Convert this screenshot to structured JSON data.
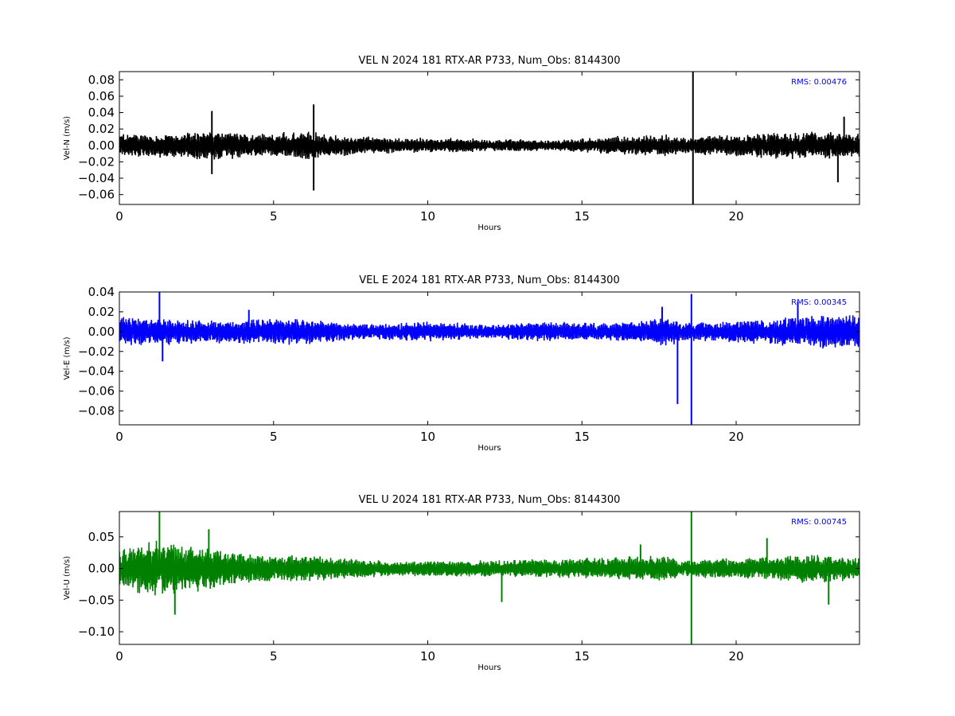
{
  "chart_data": [
    {
      "type": "line",
      "title": "VEL N 2024 181 RTX-AR  P733, Num_Obs: 8144300",
      "xlabel": "Hours",
      "ylabel": "Vel-N (m/s)",
      "xlim": [
        0,
        24
      ],
      "ylim": [
        -0.072,
        0.09
      ],
      "xticks": [
        "0",
        "5",
        "10",
        "15",
        "20"
      ],
      "yticks": [
        "−0.06",
        "−0.04",
        "−0.02",
        "0.00",
        "0.02",
        "0.04",
        "0.06",
        "0.08"
      ],
      "ytick_values": [
        -0.06,
        -0.04,
        -0.02,
        0.0,
        0.02,
        0.04,
        0.06,
        0.08
      ],
      "annotation": "RMS:  0.00476",
      "annotation_color": "#0000ff",
      "color": "#000000",
      "grid": false,
      "series": [
        {
          "noise_envelope": {
            "x": [
              0,
              1,
              2,
              3,
              4,
              5,
              6,
              7,
              8,
              9,
              10,
              11,
              12,
              13,
              14,
              15,
              16,
              17,
              18,
              18.1,
              19,
              20,
              21,
              22,
              23,
              24
            ],
            "y": [
              0.013,
              0.013,
              0.014,
              0.016,
              0.014,
              0.013,
              0.017,
              0.012,
              0.01,
              0.009,
              0.008,
              0.008,
              0.007,
              0.007,
              0.006,
              0.008,
              0.01,
              0.012,
              0.012,
              0.008,
              0.011,
              0.012,
              0.014,
              0.015,
              0.015,
              0.015
            ]
          },
          "spikes": [
            {
              "x": 3.0,
              "y": 0.042
            },
            {
              "x": 3.0,
              "y": -0.035
            },
            {
              "x": 6.3,
              "y": 0.05
            },
            {
              "x": 6.3,
              "y": -0.055
            },
            {
              "x": 18.6,
              "y": 0.09
            },
            {
              "x": 18.6,
              "y": -0.072
            },
            {
              "x": 23.3,
              "y": -0.045
            },
            {
              "x": 23.5,
              "y": 0.035
            }
          ]
        }
      ]
    },
    {
      "type": "line",
      "title": "VEL E 2024 181 RTX-AR  P733, Num_Obs: 8144300",
      "xlabel": "Hours",
      "ylabel": "Vel-E (m/s)",
      "xlim": [
        0,
        24
      ],
      "ylim": [
        -0.094,
        0.04
      ],
      "xticks": [
        "0",
        "5",
        "10",
        "15",
        "20"
      ],
      "yticks": [
        "−0.08",
        "−0.06",
        "−0.04",
        "−0.02",
        "0.00",
        "0.02",
        "0.04"
      ],
      "ytick_values": [
        -0.08,
        -0.06,
        -0.04,
        -0.02,
        0.0,
        0.02,
        0.04
      ],
      "annotation": "RMS:  0.00345",
      "annotation_color": "#0000ff",
      "color": "#0000ff",
      "grid": false,
      "series": [
        {
          "noise_envelope": {
            "x": [
              0,
              1,
              2,
              3,
              4,
              5,
              6,
              7,
              8,
              9,
              10,
              11,
              12,
              13,
              14,
              15,
              16,
              17,
              18,
              18.1,
              19,
              20,
              21,
              22,
              23,
              24
            ],
            "y": [
              0.013,
              0.013,
              0.012,
              0.011,
              0.011,
              0.012,
              0.012,
              0.009,
              0.007,
              0.008,
              0.009,
              0.008,
              0.006,
              0.008,
              0.009,
              0.008,
              0.008,
              0.01,
              0.014,
              0.008,
              0.009,
              0.01,
              0.011,
              0.014,
              0.015,
              0.015
            ]
          },
          "spikes": [
            {
              "x": 1.3,
              "y": 0.04
            },
            {
              "x": 1.4,
              "y": -0.03
            },
            {
              "x": 4.2,
              "y": 0.022
            },
            {
              "x": 17.6,
              "y": 0.025
            },
            {
              "x": 18.1,
              "y": -0.073
            },
            {
              "x": 18.55,
              "y": 0.038
            },
            {
              "x": 18.55,
              "y": -0.094
            },
            {
              "x": 22.0,
              "y": 0.03
            }
          ]
        }
      ]
    },
    {
      "type": "line",
      "title": "VEL U 2024 181 RTX-AR  P733, Num_Obs: 8144300",
      "xlabel": "Hours",
      "ylabel": "Vel-U (m/s)",
      "xlim": [
        0,
        24
      ],
      "ylim": [
        -0.12,
        0.09
      ],
      "xticks": [
        "0",
        "5",
        "10",
        "15",
        "20"
      ],
      "yticks": [
        "−0.10",
        "−0.05",
        "0.00",
        "0.05"
      ],
      "ytick_values": [
        -0.1,
        -0.05,
        0.0,
        0.05
      ],
      "annotation": "RMS:  0.00745",
      "annotation_color": "#0000ff",
      "color": "#008000",
      "grid": false,
      "series": [
        {
          "noise_envelope": {
            "x": [
              0,
              1,
              2,
              3,
              4,
              5,
              6,
              7,
              8,
              9,
              10,
              11,
              12,
              13,
              14,
              15,
              16,
              17,
              18,
              18.1,
              19,
              20,
              21,
              22,
              23,
              24
            ],
            "y": [
              0.03,
              0.04,
              0.035,
              0.03,
              0.022,
              0.018,
              0.02,
              0.016,
              0.013,
              0.011,
              0.011,
              0.012,
              0.012,
              0.013,
              0.014,
              0.015,
              0.016,
              0.018,
              0.018,
              0.01,
              0.014,
              0.014,
              0.017,
              0.02,
              0.02,
              0.016
            ]
          },
          "spikes": [
            {
              "x": 1.3,
              "y": 0.09
            },
            {
              "x": 1.8,
              "y": -0.073
            },
            {
              "x": 2.9,
              "y": 0.062
            },
            {
              "x": 12.4,
              "y": -0.053
            },
            {
              "x": 16.9,
              "y": 0.038
            },
            {
              "x": 18.55,
              "y": 0.09
            },
            {
              "x": 18.55,
              "y": -0.12
            },
            {
              "x": 21.0,
              "y": 0.048
            },
            {
              "x": 23.0,
              "y": -0.057
            }
          ]
        }
      ]
    }
  ]
}
